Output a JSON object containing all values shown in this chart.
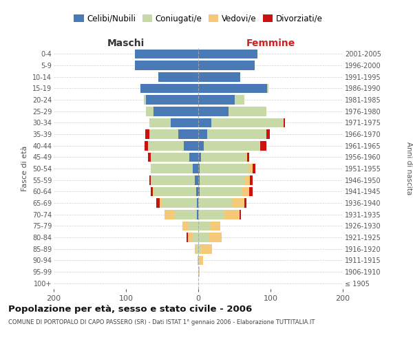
{
  "age_groups": [
    "100+",
    "95-99",
    "90-94",
    "85-89",
    "80-84",
    "75-79",
    "70-74",
    "65-69",
    "60-64",
    "55-59",
    "50-54",
    "45-49",
    "40-44",
    "35-39",
    "30-34",
    "25-29",
    "20-24",
    "15-19",
    "10-14",
    "5-9",
    "0-4"
  ],
  "birth_years": [
    "≤ 1905",
    "1906-1910",
    "1911-1915",
    "1916-1920",
    "1921-1925",
    "1926-1930",
    "1931-1935",
    "1936-1940",
    "1941-1945",
    "1946-1950",
    "1951-1955",
    "1956-1960",
    "1961-1965",
    "1966-1970",
    "1971-1975",
    "1976-1980",
    "1981-1985",
    "1986-1990",
    "1991-1995",
    "1996-2000",
    "2001-2005"
  ],
  "maschi_celibi": [
    0,
    0,
    0,
    0,
    0,
    0,
    2,
    2,
    3,
    5,
    8,
    12,
    20,
    28,
    38,
    62,
    72,
    80,
    55,
    88,
    88
  ],
  "maschi_coniugati": [
    0,
    0,
    1,
    3,
    8,
    14,
    30,
    48,
    58,
    60,
    58,
    54,
    50,
    40,
    30,
    10,
    3,
    0,
    0,
    0,
    0
  ],
  "maschi_vedovi": [
    0,
    0,
    0,
    2,
    6,
    8,
    15,
    3,
    2,
    1,
    0,
    0,
    0,
    0,
    0,
    0,
    0,
    0,
    0,
    0,
    0
  ],
  "maschi_divorziati": [
    0,
    0,
    0,
    0,
    2,
    0,
    0,
    5,
    3,
    2,
    0,
    4,
    4,
    5,
    0,
    0,
    0,
    0,
    0,
    0,
    0
  ],
  "femmine_celibi": [
    0,
    0,
    0,
    0,
    0,
    0,
    0,
    0,
    2,
    2,
    2,
    4,
    8,
    12,
    18,
    42,
    50,
    95,
    58,
    78,
    82
  ],
  "femmine_coniugati": [
    0,
    0,
    2,
    4,
    14,
    16,
    35,
    48,
    58,
    62,
    68,
    62,
    78,
    82,
    100,
    52,
    14,
    2,
    0,
    0,
    0
  ],
  "femmine_vedovi": [
    0,
    2,
    5,
    15,
    18,
    14,
    22,
    16,
    10,
    7,
    5,
    2,
    0,
    0,
    0,
    0,
    0,
    0,
    0,
    0,
    0
  ],
  "femmine_divorziati": [
    0,
    0,
    0,
    0,
    0,
    0,
    2,
    3,
    5,
    4,
    4,
    2,
    8,
    5,
    2,
    0,
    0,
    0,
    0,
    0,
    0
  ],
  "color_celibi": "#4a7ab5",
  "color_coniugati": "#c8d9a8",
  "color_vedovi": "#f5c87a",
  "color_divorziati": "#cc1111",
  "title": "Popolazione per età, sesso e stato civile - 2006",
  "subtitle": "COMUNE DI PORTOPALO DI CAPO PASSERO (SR) - Dati ISTAT 1° gennaio 2006 - Elaborazione TUTTITALIA.IT",
  "ylabel_left": "Fasce di età",
  "ylabel_right": "Anni di nascita",
  "xlabel_maschi": "Maschi",
  "xlabel_femmine": "Femmine",
  "xlim": 200,
  "bg_color": "#ffffff",
  "grid_color": "#bbbbbb",
  "legend_labels": [
    "Celibi/Nubili",
    "Coniugati/e",
    "Vedovi/e",
    "Divorziati/e"
  ]
}
